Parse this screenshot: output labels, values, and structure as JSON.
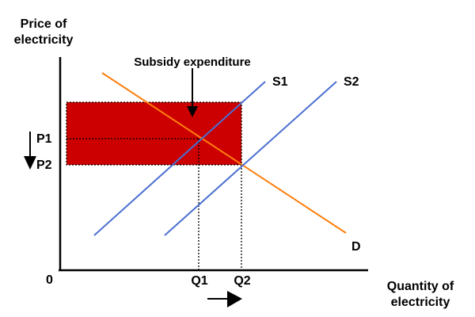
{
  "diagram": {
    "y_axis_label": [
      "Price of",
      "electricity"
    ],
    "x_axis_label": [
      "Quantity of",
      "electricity"
    ],
    "origin_label": "0",
    "subsidy_label": "Subsidy expenditure",
    "curves": {
      "s1": "S1",
      "s2": "S2",
      "d": "D"
    },
    "price_labels": {
      "p1": "P1",
      "p2": "P2"
    },
    "quantity_labels": {
      "q1": "Q1",
      "q2": "Q2"
    },
    "colors": {
      "supply": "#4a6fd1",
      "demand": "#ff7f0e",
      "subsidy_area": "#cc0000",
      "axis": "#000000"
    }
  }
}
